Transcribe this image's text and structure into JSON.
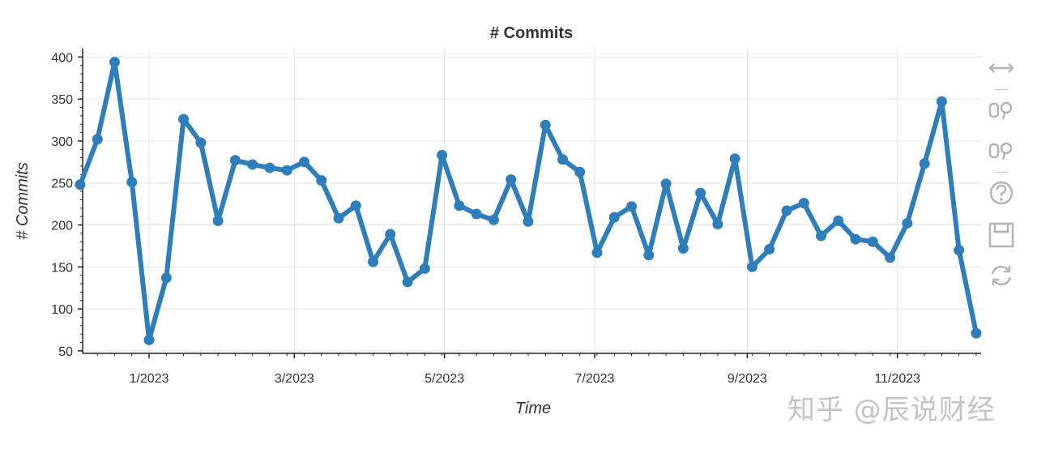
{
  "chart_data": {
    "type": "line",
    "title": "# Commits",
    "xlabel": "Time",
    "ylabel": "# Commits",
    "ylim": [
      47,
      410
    ],
    "xlim": [
      "2022-12-05",
      "2023-12-05"
    ],
    "x_tick_labels": [
      "1/2023",
      "3/2023",
      "5/2023",
      "7/2023",
      "9/2023",
      "11/2023"
    ],
    "x_tick_dates": [
      "2023-01-01",
      "2023-03-01",
      "2023-05-01",
      "2023-07-01",
      "2023-09-01",
      "2023-11-01"
    ],
    "y_ticks": [
      50,
      100,
      150,
      200,
      250,
      300,
      350,
      400
    ],
    "grid": true,
    "color": "#2e7ebb",
    "series": [
      {
        "x": [
          "2022-12-04",
          "2022-12-11",
          "2022-12-18",
          "2022-12-25",
          "2023-01-01",
          "2023-01-08",
          "2023-01-15",
          "2023-01-22",
          "2023-01-29",
          "2023-02-05",
          "2023-02-12",
          "2023-02-19",
          "2023-02-26",
          "2023-03-05",
          "2023-03-12",
          "2023-03-19",
          "2023-03-26",
          "2023-04-02",
          "2023-04-09",
          "2023-04-16",
          "2023-04-23",
          "2023-04-30",
          "2023-05-07",
          "2023-05-14",
          "2023-05-21",
          "2023-05-28",
          "2023-06-04",
          "2023-06-11",
          "2023-06-18",
          "2023-06-25",
          "2023-07-02",
          "2023-07-09",
          "2023-07-16",
          "2023-07-23",
          "2023-07-30",
          "2023-08-06",
          "2023-08-13",
          "2023-08-20",
          "2023-08-27",
          "2023-09-03",
          "2023-09-10",
          "2023-09-17",
          "2023-09-24",
          "2023-10-01",
          "2023-10-08",
          "2023-10-15",
          "2023-10-22",
          "2023-10-29",
          "2023-11-05",
          "2023-11-12",
          "2023-11-19",
          "2023-11-26",
          "2023-12-03"
        ],
        "values": [
          248,
          302,
          394,
          251,
          63,
          137,
          326,
          298,
          205,
          277,
          272,
          268,
          265,
          275,
          253,
          208,
          223,
          156,
          189,
          132,
          148,
          283,
          223,
          213,
          206,
          254,
          204,
          319,
          278,
          263,
          167,
          209,
          222,
          164,
          249,
          172,
          238,
          201,
          279,
          150,
          171,
          217,
          226,
          187,
          205,
          183,
          180,
          161,
          202,
          273,
          347,
          170,
          71
        ]
      }
    ]
  },
  "toolbar": {
    "tools": [
      {
        "name": "pan-icon",
        "label": "Pan"
      },
      {
        "name": "box-zoom-icon",
        "label": "Box Zoom"
      },
      {
        "name": "wheel-zoom-icon",
        "label": "Wheel Zoom"
      },
      {
        "name": "help-icon",
        "label": "Help"
      },
      {
        "name": "save-icon",
        "label": "Save"
      },
      {
        "name": "reset-icon",
        "label": "Reset"
      }
    ]
  },
  "watermark": {
    "text": "知乎 @辰说财经"
  }
}
